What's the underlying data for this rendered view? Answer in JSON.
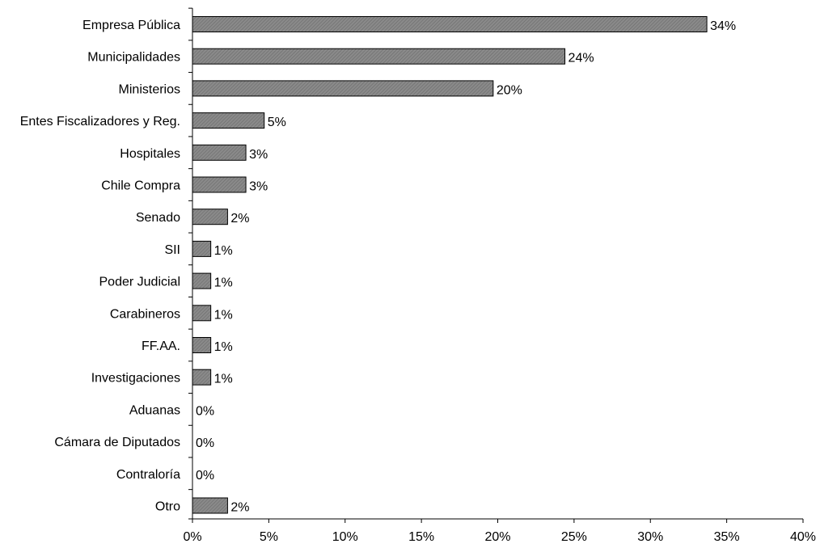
{
  "chart_data": {
    "type": "bar",
    "orientation": "horizontal",
    "categories": [
      "Empresa Pública",
      "Municipalidades",
      "Ministerios",
      "Entes Fiscalizadores y Reg.",
      "Hospitales",
      "Chile Compra",
      "Senado",
      "SII",
      "Poder Judicial",
      "Carabineros",
      "FF.AA.",
      "Investigaciones",
      "Aduanas",
      "Cámara de Diputados",
      "Contraloría",
      "Otro"
    ],
    "values": [
      33.7,
      24.4,
      19.7,
      4.7,
      3.5,
      3.5,
      2.3,
      1.2,
      1.2,
      1.2,
      1.2,
      1.2,
      0,
      0,
      0,
      2.3
    ],
    "value_labels": [
      "34%",
      "24%",
      "20%",
      "5%",
      "3%",
      "3%",
      "2%",
      "1%",
      "1%",
      "1%",
      "1%",
      "1%",
      "0%",
      "0%",
      "0%",
      "2%"
    ],
    "xlim": [
      0,
      40
    ],
    "x_ticks": [
      0,
      5,
      10,
      15,
      20,
      25,
      30,
      35,
      40
    ],
    "x_tick_labels": [
      "0%",
      "5%",
      "10%",
      "15%",
      "20%",
      "25%",
      "30%",
      "35%",
      "40%"
    ],
    "title": "",
    "xlabel": "",
    "ylabel": "",
    "grid": false,
    "legend": "none",
    "bar_color": "#808080",
    "bar_edge_color": "#000000"
  }
}
